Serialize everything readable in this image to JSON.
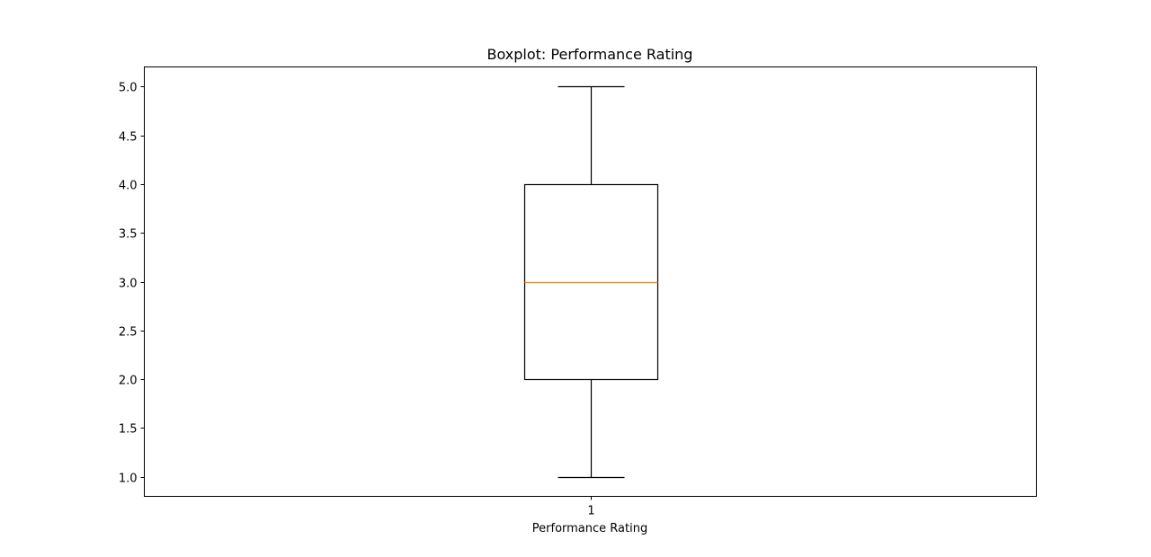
{
  "chart_data": {
    "type": "box",
    "title": "Boxplot: Performance Rating",
    "xlabel": "Performance Rating",
    "ylabel": "",
    "categories": [
      "1"
    ],
    "boxes": [
      {
        "category": "1",
        "whisker_low": 1.0,
        "q1": 2.0,
        "median": 3.0,
        "q3": 4.0,
        "whisker_high": 5.0
      }
    ],
    "ylim": [
      0.8,
      5.2
    ],
    "yticks": [
      "1.0",
      "1.5",
      "2.0",
      "2.5",
      "3.0",
      "3.5",
      "4.0",
      "4.5",
      "5.0"
    ],
    "grid": false,
    "colors": {
      "box": "#000000",
      "median": "#ff7f0e",
      "whisker": "#000000",
      "axes": "#000000"
    }
  }
}
